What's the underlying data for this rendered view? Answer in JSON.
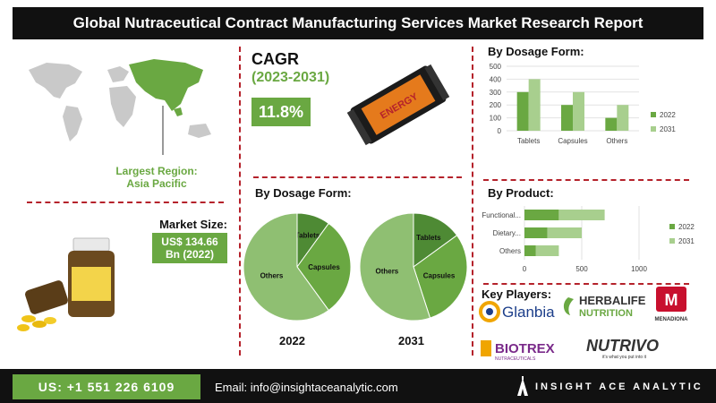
{
  "header": {
    "title": "Global Nutraceutical Contract Manufacturing Services Market Research Report"
  },
  "region": {
    "label": "Largest Region:",
    "value": "Asia Pacific"
  },
  "cagr": {
    "label": "CAGR",
    "period": "(2023-2031)",
    "value": "11.8%",
    "icon_text": "ENERGY"
  },
  "market_size": {
    "label": "Market Size:",
    "value_line1": "US$ 134.66",
    "value_line2": "Bn (2022)"
  },
  "pies": {
    "title": "By Dosage Form:",
    "year_left": "2022",
    "year_right": "2031"
  },
  "key_players": {
    "title": "Key Players:",
    "logos": [
      "Glanbia",
      "HERBALIFE",
      "NUTRITION",
      "MENADIONA",
      "BIOTREX",
      "NUTRACEUTICALS",
      "NUTRIVO",
      "it's what you put into it"
    ]
  },
  "footer": {
    "phone": "US: +1 551 226 6109",
    "email": "Email: info@insightaceanalytic.com",
    "brand": "INSIGHT ACE ANALYTIC"
  },
  "colors": {
    "green": "#6aa842",
    "light_green": "#a8cf8e",
    "dark_green": "#4e8a34",
    "red": "#b5222b"
  },
  "chart_data": [
    {
      "type": "bar",
      "title": "By Dosage Form:",
      "categories": [
        "Tablets",
        "Capsules",
        "Others"
      ],
      "series": [
        {
          "name": "2022",
          "values": [
            300,
            200,
            100
          ]
        },
        {
          "name": "2031",
          "values": [
            400,
            300,
            200
          ]
        }
      ],
      "ylim": [
        0,
        500
      ],
      "yticks": [
        0,
        100,
        200,
        300,
        400,
        500
      ],
      "legend": "right",
      "grid": true
    },
    {
      "type": "bar",
      "orientation": "horizontal",
      "title": "By Product:",
      "categories": [
        "Functional...",
        "Dietary...",
        "Others"
      ],
      "series": [
        {
          "name": "2022",
          "values": [
            300,
            200,
            100
          ]
        },
        {
          "name": "2031",
          "values": [
            400,
            300,
            200
          ]
        }
      ],
      "stacked": true,
      "xlim": [
        0,
        1000
      ],
      "xticks": [
        0,
        500,
        1000
      ],
      "legend": "right",
      "grid": true
    },
    {
      "type": "pie",
      "title": "2022",
      "labels": [
        "Tablets",
        "Capsules",
        "Others"
      ],
      "values": [
        10,
        30,
        60
      ],
      "colors": [
        "#4e8a34",
        "#6aa842",
        "#8fbf72"
      ]
    },
    {
      "type": "pie",
      "title": "2031",
      "labels": [
        "Tablets",
        "Capsules",
        "Others"
      ],
      "values": [
        15,
        30,
        55
      ],
      "colors": [
        "#4e8a34",
        "#6aa842",
        "#8fbf72"
      ]
    }
  ]
}
